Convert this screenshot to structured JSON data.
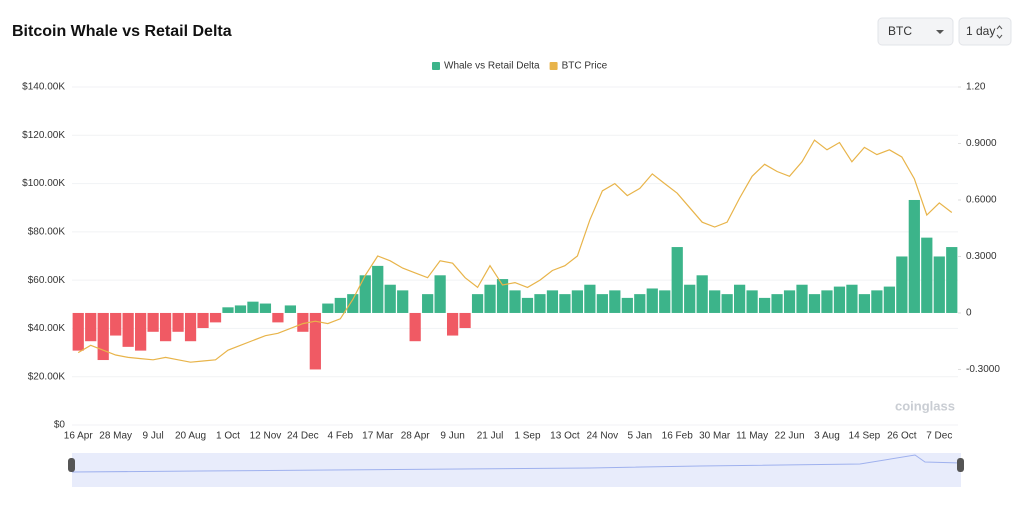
{
  "header": {
    "title": "Bitcoin Whale vs Retail Delta",
    "asset": "BTC",
    "interval": "1 day"
  },
  "watermark": "coinglass",
  "chart_data": {
    "type": "bar-line",
    "categories": [
      "16 Apr",
      null,
      null,
      "28 May",
      null,
      null,
      "9 Jul",
      null,
      null,
      "20 Aug",
      null,
      null,
      "1 Oct",
      null,
      null,
      "12 Nov",
      null,
      null,
      "24 Dec",
      null,
      null,
      "4 Feb",
      null,
      null,
      "17 Mar",
      null,
      null,
      "28 Apr",
      null,
      null,
      "9 Jun",
      null,
      null,
      "21 Jul",
      null,
      null,
      "1 Sep",
      null,
      null,
      "13 Oct",
      null,
      null,
      "24 Nov",
      null,
      null,
      "5 Jan",
      null,
      null,
      "16 Feb",
      null,
      null,
      "30 Mar",
      null,
      null,
      "11 May",
      null,
      null,
      "22 Jun",
      null,
      null,
      "3 Aug",
      null,
      null,
      "14 Sep",
      null,
      null,
      "26 Oct",
      null,
      null,
      "7 Dec",
      null
    ],
    "series": [
      {
        "name": "Whale vs Retail Delta",
        "color": "#3cb48a",
        "negative_color": "#f05a64",
        "axis": "y2",
        "values": [
          -0.2,
          -0.15,
          -0.25,
          -0.12,
          -0.18,
          -0.2,
          -0.1,
          -0.15,
          -0.1,
          -0.15,
          -0.08,
          -0.05,
          0.03,
          0.04,
          0.06,
          0.05,
          -0.05,
          0.04,
          -0.1,
          -0.3,
          0.05,
          0.08,
          0.1,
          0.2,
          0.25,
          0.15,
          0.12,
          -0.15,
          0.1,
          0.2,
          -0.12,
          -0.08,
          0.1,
          0.15,
          0.18,
          0.12,
          0.08,
          0.1,
          0.12,
          0.1,
          0.12,
          0.15,
          0.1,
          0.12,
          0.08,
          0.1,
          0.13,
          0.12,
          0.35,
          0.15,
          0.2,
          0.12,
          0.1,
          0.15,
          0.12,
          0.08,
          0.1,
          0.12,
          0.15,
          0.1,
          0.12,
          0.14,
          0.15,
          0.1,
          0.12,
          0.14,
          0.3,
          0.6,
          0.4,
          0.3,
          0.35
        ]
      },
      {
        "name": "BTC Price",
        "color": "#e8b44a",
        "values": [
          30000,
          33000,
          31000,
          29000,
          28000,
          27500,
          27000,
          28000,
          27000,
          26000,
          26500,
          27000,
          31000,
          33000,
          35000,
          37000,
          38000,
          40000,
          42000,
          43000,
          42000,
          44000,
          52000,
          62000,
          70000,
          68000,
          65000,
          63000,
          61000,
          68000,
          67000,
          61000,
          57000,
          66000,
          58000,
          59000,
          57000,
          60000,
          64000,
          66000,
          70000,
          85000,
          97000,
          100000,
          95000,
          98000,
          104000,
          100000,
          96000,
          90000,
          84000,
          82000,
          84000,
          94000,
          103000,
          108000,
          105000,
          103000,
          109000,
          118000,
          114000,
          117000,
          109000,
          115000,
          112000,
          114000,
          111000,
          102000,
          87000,
          92000,
          88000
        ]
      }
    ],
    "ylim": [
      0,
      140000
    ],
    "yticks": [
      {
        "value": 0,
        "label": "$0"
      },
      {
        "value": 20000,
        "label": "$20.00K"
      },
      {
        "value": 40000,
        "label": "$40.00K"
      },
      {
        "value": 60000,
        "label": "$60.00K"
      },
      {
        "value": 80000,
        "label": "$80.00K"
      },
      {
        "value": 100000,
        "label": "$100.00K"
      },
      {
        "value": 120000,
        "label": "$120.00K"
      },
      {
        "value": 140000,
        "label": "$140.00K"
      }
    ],
    "y2lim": [
      -0.595,
      1.2
    ],
    "y2ticks": [
      {
        "value": -0.3,
        "label": "-0.3000"
      },
      0,
      {
        "value": 0.3,
        "label": "0.3000"
      },
      {
        "value": 0.6,
        "label": "0.6000"
      },
      {
        "value": 0.9,
        "label": "0.9000"
      },
      {
        "value": 1.2,
        "label": "1.20"
      }
    ],
    "grid": true,
    "legend": "top"
  }
}
